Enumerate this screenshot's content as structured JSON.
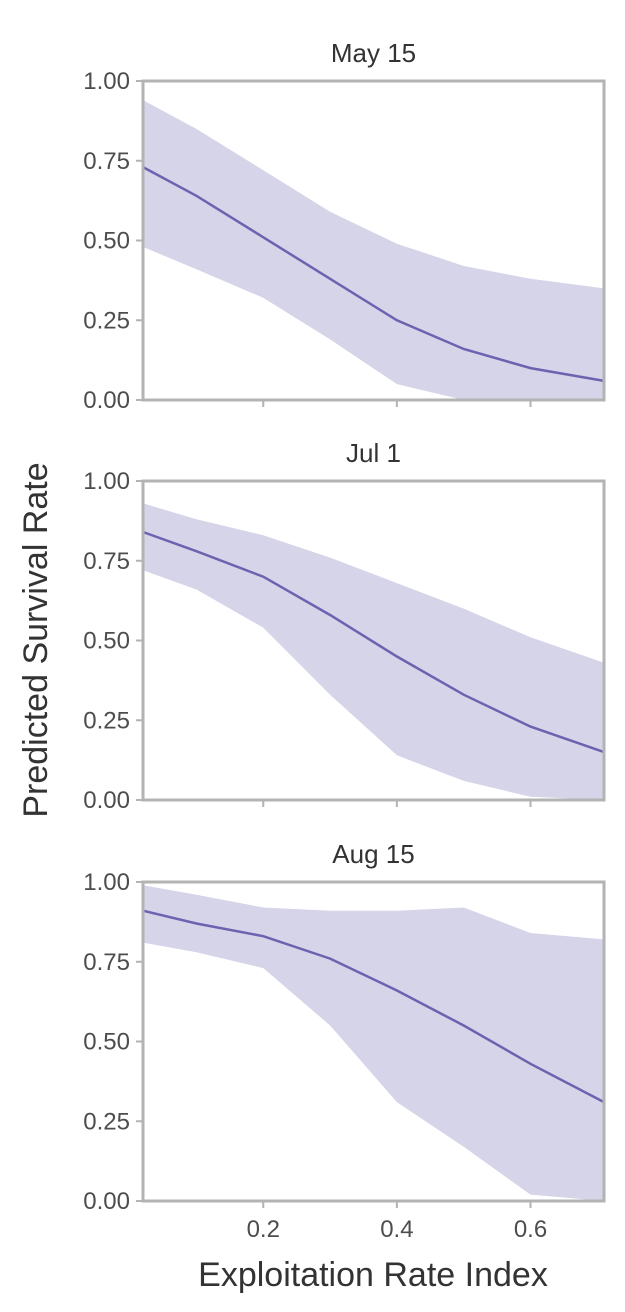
{
  "chart_data": {
    "type": "line",
    "xlabel": "Exploitation Rate Index",
    "ylabel": "Predicted Survival Rate",
    "xlim": [
      0.02,
      0.71
    ],
    "ylim": [
      0,
      1
    ],
    "x_ticks": [
      {
        "value": 0.2,
        "label": "0.2"
      },
      {
        "value": 0.4,
        "label": "0.4"
      },
      {
        "value": 0.6,
        "label": "0.6"
      }
    ],
    "y_ticks": [
      {
        "value": 0.0,
        "label": "0.00"
      },
      {
        "value": 0.25,
        "label": "0.25"
      },
      {
        "value": 0.5,
        "label": "0.50"
      },
      {
        "value": 0.75,
        "label": "0.75"
      },
      {
        "value": 1.0,
        "label": "1.00"
      }
    ],
    "colors": {
      "line": "#6b63b0",
      "band": "#d6d4e9",
      "frame": "#b3b3b3",
      "text": "#4d4d4d"
    },
    "panels": [
      {
        "title": "May 15",
        "x": [
          0.02,
          0.1,
          0.2,
          0.3,
          0.4,
          0.5,
          0.6,
          0.71
        ],
        "mean": [
          0.73,
          0.64,
          0.51,
          0.38,
          0.25,
          0.16,
          0.1,
          0.06
        ],
        "lower": [
          0.48,
          0.41,
          0.32,
          0.19,
          0.05,
          0.0,
          0.0,
          0.0
        ],
        "upper": [
          0.94,
          0.85,
          0.72,
          0.59,
          0.49,
          0.42,
          0.38,
          0.35
        ]
      },
      {
        "title": "Jul 1",
        "x": [
          0.02,
          0.1,
          0.2,
          0.3,
          0.4,
          0.5,
          0.6,
          0.71
        ],
        "mean": [
          0.84,
          0.78,
          0.7,
          0.58,
          0.45,
          0.33,
          0.23,
          0.15
        ],
        "lower": [
          0.72,
          0.66,
          0.54,
          0.33,
          0.14,
          0.06,
          0.01,
          0.0
        ],
        "upper": [
          0.93,
          0.88,
          0.83,
          0.76,
          0.68,
          0.6,
          0.51,
          0.43
        ]
      },
      {
        "title": "Aug 15",
        "x": [
          0.02,
          0.1,
          0.2,
          0.3,
          0.4,
          0.5,
          0.6,
          0.71
        ],
        "mean": [
          0.91,
          0.87,
          0.83,
          0.76,
          0.66,
          0.55,
          0.43,
          0.31
        ],
        "lower": [
          0.81,
          0.78,
          0.73,
          0.55,
          0.31,
          0.17,
          0.02,
          0.0
        ],
        "upper": [
          0.99,
          0.96,
          0.92,
          0.91,
          0.91,
          0.92,
          0.84,
          0.82
        ]
      }
    ]
  }
}
